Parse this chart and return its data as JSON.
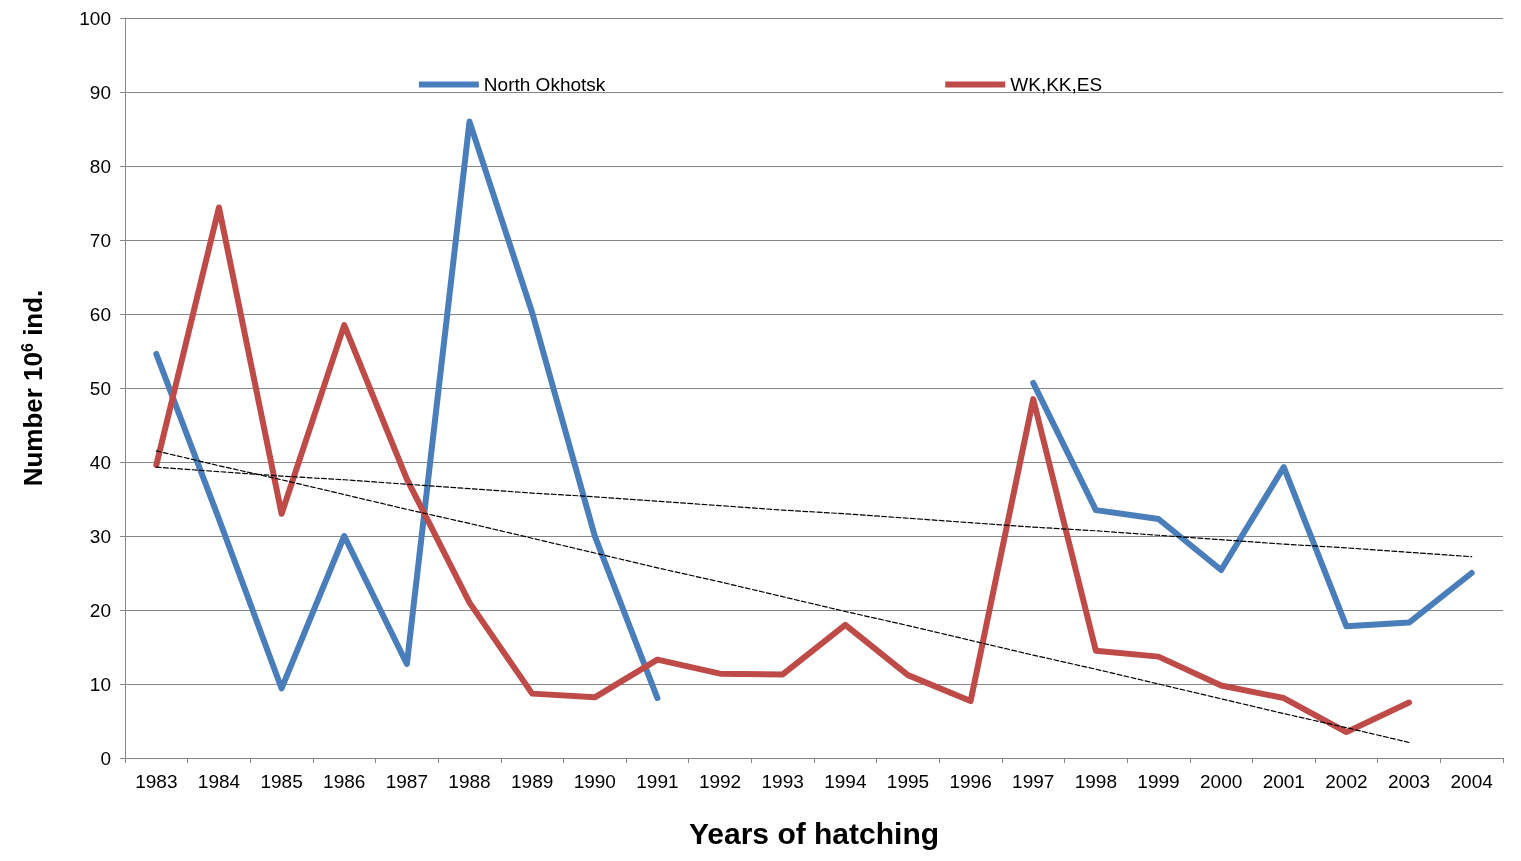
{
  "chart_data": {
    "type": "line",
    "xlabel": "Years of hatching",
    "ylabel": "Number 10$^{6}$ ind.",
    "categories": [
      "1983",
      "1984",
      "1985",
      "1986",
      "1987",
      "1988",
      "1989",
      "1990",
      "1991",
      "1992",
      "1993",
      "1994",
      "1995",
      "1996",
      "1997",
      "1998",
      "1999",
      "2000",
      "2001",
      "2002",
      "2003",
      "2004"
    ],
    "series": [
      {
        "name": "North Okhotsk",
        "color": "#4a7ebb",
        "values": [
          54.6,
          32.3,
          9.4,
          30,
          12.7,
          86,
          60.2,
          30,
          8.1,
          null,
          null,
          null,
          null,
          null,
          50.7,
          33.5,
          32.3,
          25.4,
          39.3,
          17.8,
          18.3,
          25
        ]
      },
      {
        "name": "WK,KK,ES",
        "color": "#be4b48",
        "values": [
          39.6,
          74.4,
          33,
          58.5,
          37.7,
          21,
          8.7,
          8.2,
          13.3,
          11.4,
          11.3,
          18,
          11.2,
          7.7,
          48.5,
          14.5,
          13.7,
          9.8,
          8.1,
          3.5,
          7.5,
          null
        ]
      },
      {
        "color": "#000000",
        "line_style": "dashed",
        "values": [
          39.3,
          38.7,
          38.1,
          37.6,
          37.0,
          36.4,
          35.8,
          35.3,
          34.7,
          34.1,
          33.5,
          33.0,
          32.4,
          31.8,
          31.2,
          30.7,
          30.1,
          29.5,
          28.9,
          28.4,
          27.8,
          27.2
        ]
      },
      {
        "color": "#000000",
        "line_style": "dashed",
        "values": [
          41.5,
          39.5,
          37.6,
          35.6,
          33.6,
          31.7,
          29.7,
          27.7,
          25.7,
          23.8,
          21.8,
          19.8,
          17.9,
          15.9,
          13.9,
          12.0,
          10.0,
          8.0,
          6.0,
          4.1,
          2.1,
          null
        ]
      }
    ],
    "ylim": [
      0,
      100
    ],
    "yticks": [
      0,
      10,
      20,
      30,
      40,
      50,
      60,
      70,
      80,
      90,
      100
    ],
    "grid": "y",
    "legend": "top",
    "marker": "none"
  }
}
